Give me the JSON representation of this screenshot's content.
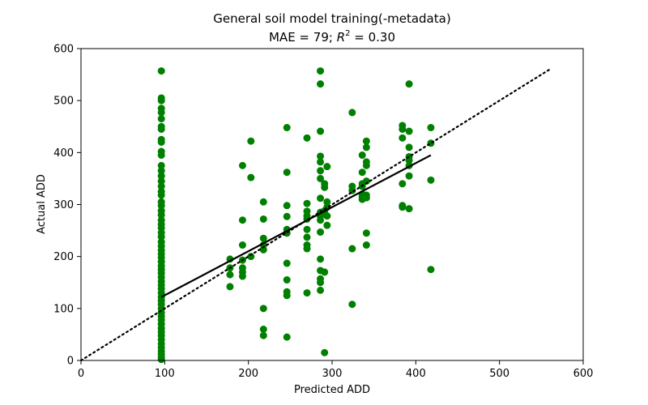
{
  "chart_data": {
    "type": "scatter",
    "title": "General soil model training(-metadata)",
    "subtitle_prefix": "MAE = 79; ",
    "subtitle_r": "R",
    "subtitle_exp": "2",
    "subtitle_suffix": " = 0.30",
    "xlabel": "Predicted ADD",
    "ylabel": "Actual ADD",
    "xlim": [
      0,
      600
    ],
    "ylim": [
      0,
      600
    ],
    "xticks": [
      0,
      100,
      200,
      300,
      400,
      500,
      600
    ],
    "yticks": [
      0,
      100,
      200,
      300,
      400,
      500,
      600
    ],
    "grid": false,
    "colors": {
      "points": "#008000",
      "fit_line": "#000000",
      "identity_line": "#000000"
    },
    "fit_line": {
      "style": "solid",
      "x": [
        96,
        418
      ],
      "y": [
        122,
        395
      ]
    },
    "identity_line": {
      "style": "dotted",
      "x": [
        0,
        560
      ],
      "y": [
        0,
        560
      ]
    },
    "series": [
      {
        "values": [
          [
            96,
            557
          ],
          [
            96,
            505
          ],
          [
            96,
            500
          ],
          [
            96,
            485
          ],
          [
            96,
            477
          ],
          [
            96,
            465
          ],
          [
            96,
            450
          ],
          [
            96,
            445
          ],
          [
            96,
            425
          ],
          [
            96,
            420
          ],
          [
            96,
            402
          ],
          [
            96,
            395
          ],
          [
            96,
            375
          ],
          [
            96,
            365
          ],
          [
            96,
            355
          ],
          [
            96,
            345
          ],
          [
            96,
            335
          ],
          [
            96,
            325
          ],
          [
            96,
            318
          ],
          [
            96,
            305
          ],
          [
            96,
            298
          ],
          [
            96,
            288
          ],
          [
            96,
            280
          ],
          [
            96,
            270
          ],
          [
            96,
            262
          ],
          [
            96,
            255
          ],
          [
            96,
            246
          ],
          [
            96,
            238
          ],
          [
            96,
            228
          ],
          [
            96,
            220
          ],
          [
            96,
            212
          ],
          [
            96,
            205
          ],
          [
            96,
            198
          ],
          [
            96,
            190
          ],
          [
            96,
            182
          ],
          [
            96,
            175
          ],
          [
            96,
            168
          ],
          [
            96,
            160
          ],
          [
            96,
            152
          ],
          [
            96,
            145
          ],
          [
            96,
            138
          ],
          [
            96,
            130
          ],
          [
            96,
            122
          ],
          [
            96,
            115
          ],
          [
            96,
            108
          ],
          [
            96,
            100
          ],
          [
            96,
            92
          ],
          [
            96,
            85
          ],
          [
            96,
            78
          ],
          [
            96,
            70
          ],
          [
            96,
            62
          ],
          [
            96,
            55
          ],
          [
            96,
            48
          ],
          [
            96,
            40
          ],
          [
            96,
            32
          ],
          [
            96,
            25
          ],
          [
            96,
            18
          ],
          [
            96,
            12
          ],
          [
            96,
            6
          ],
          [
            96,
            2
          ],
          [
            178,
            195
          ],
          [
            178,
            178
          ],
          [
            178,
            165
          ],
          [
            178,
            142
          ],
          [
            193,
            375
          ],
          [
            193,
            270
          ],
          [
            193,
            222
          ],
          [
            193,
            193
          ],
          [
            193,
            178
          ],
          [
            193,
            170
          ],
          [
            193,
            162
          ],
          [
            203,
            422
          ],
          [
            203,
            352
          ],
          [
            203,
            200
          ],
          [
            218,
            305
          ],
          [
            218,
            272
          ],
          [
            218,
            235
          ],
          [
            218,
            222
          ],
          [
            218,
            213
          ],
          [
            218,
            100
          ],
          [
            218,
            60
          ],
          [
            218,
            48
          ],
          [
            246,
            448
          ],
          [
            246,
            362
          ],
          [
            246,
            298
          ],
          [
            246,
            277
          ],
          [
            246,
            252
          ],
          [
            246,
            245
          ],
          [
            246,
            187
          ],
          [
            246,
            155
          ],
          [
            246,
            132
          ],
          [
            246,
            125
          ],
          [
            246,
            45
          ],
          [
            270,
            428
          ],
          [
            270,
            302
          ],
          [
            270,
            287
          ],
          [
            270,
            278
          ],
          [
            270,
            272
          ],
          [
            270,
            252
          ],
          [
            270,
            237
          ],
          [
            270,
            222
          ],
          [
            270,
            215
          ],
          [
            270,
            130
          ],
          [
            286,
            557
          ],
          [
            286,
            532
          ],
          [
            286,
            441
          ],
          [
            286,
            393
          ],
          [
            286,
            382
          ],
          [
            286,
            365
          ],
          [
            286,
            350
          ],
          [
            286,
            312
          ],
          [
            286,
            285
          ],
          [
            286,
            278
          ],
          [
            286,
            270
          ],
          [
            286,
            247
          ],
          [
            286,
            195
          ],
          [
            286,
            173
          ],
          [
            286,
            157
          ],
          [
            286,
            150
          ],
          [
            286,
            135
          ],
          [
            291,
            340
          ],
          [
            291,
            333
          ],
          [
            291,
            288
          ],
          [
            291,
            170
          ],
          [
            291,
            15
          ],
          [
            294,
            373
          ],
          [
            294,
            305
          ],
          [
            294,
            295
          ],
          [
            294,
            278
          ],
          [
            294,
            260
          ],
          [
            324,
            477
          ],
          [
            324,
            335
          ],
          [
            324,
            327
          ],
          [
            324,
            215
          ],
          [
            324,
            108
          ],
          [
            336,
            395
          ],
          [
            336,
            362
          ],
          [
            336,
            340
          ],
          [
            336,
            335
          ],
          [
            336,
            320
          ],
          [
            336,
            315
          ],
          [
            336,
            310
          ],
          [
            341,
            422
          ],
          [
            341,
            410
          ],
          [
            341,
            382
          ],
          [
            341,
            375
          ],
          [
            341,
            345
          ],
          [
            341,
            318
          ],
          [
            341,
            313
          ],
          [
            341,
            245
          ],
          [
            341,
            222
          ],
          [
            384,
            452
          ],
          [
            384,
            445
          ],
          [
            384,
            428
          ],
          [
            384,
            340
          ],
          [
            384,
            298
          ],
          [
            384,
            295
          ],
          [
            392,
            532
          ],
          [
            392,
            441
          ],
          [
            392,
            410
          ],
          [
            392,
            392
          ],
          [
            392,
            385
          ],
          [
            392,
            375
          ],
          [
            392,
            355
          ],
          [
            392,
            292
          ],
          [
            418,
            448
          ],
          [
            418,
            418
          ],
          [
            418,
            347
          ],
          [
            418,
            175
          ]
        ]
      }
    ]
  }
}
